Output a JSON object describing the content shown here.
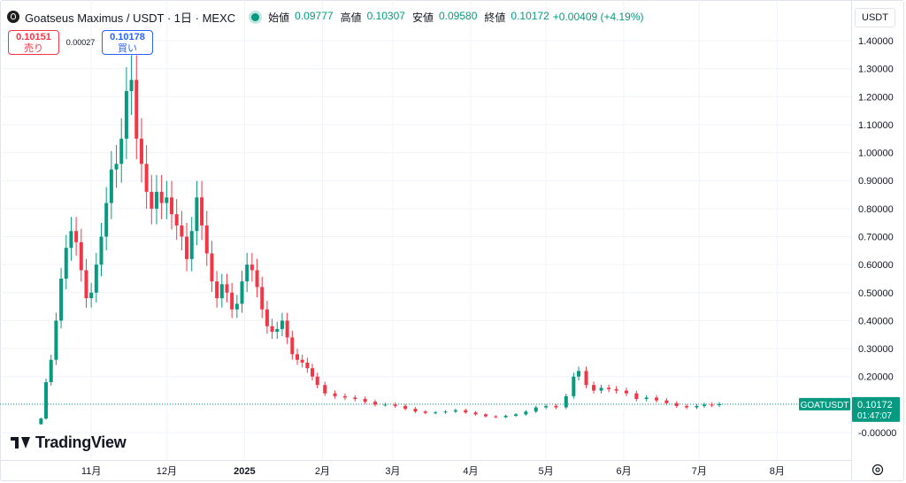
{
  "header": {
    "title": "Goatseus Maximus / USDT · 1日 · MEXC",
    "ohlc": [
      {
        "label": "始値",
        "value": "0.09777"
      },
      {
        "label": "高値",
        "value": "0.10307"
      },
      {
        "label": "安値",
        "value": "0.09580"
      },
      {
        "label": "終値",
        "value": "0.10172"
      }
    ],
    "change": "+0.00409 (+4.19%)"
  },
  "trade": {
    "sell_price": "0.10151",
    "sell_label": "売り",
    "spread": "0.00027",
    "buy_price": "0.10178",
    "buy_label": "買い"
  },
  "currency_button": "USDT",
  "price_tag": {
    "symbol": "GOATUSDT",
    "price": "0.10172",
    "countdown": "01:47:07"
  },
  "brand": "TradingView",
  "icons": {
    "logo": "goat-coin-icon",
    "live": "live-dot-icon",
    "settings": "gear-icon"
  },
  "colors": {
    "up": "#089981",
    "down": "#f23645",
    "grid": "#f0f3fa",
    "text": "#131722"
  },
  "chart_data": {
    "type": "candlestick",
    "y_ticks": [
      "1.40000",
      "1.30000",
      "1.20000",
      "1.10000",
      "1.00000",
      "0.90000",
      "0.80000",
      "0.70000",
      "0.60000",
      "0.50000",
      "0.40000",
      "0.30000",
      "0.20000",
      "0.10000",
      "-0.00000"
    ],
    "ylim": [
      -0.03,
      1.46
    ],
    "x_ticks": [
      "11月",
      "12月",
      "2025",
      "2月",
      "3月",
      "4月",
      "5月",
      "6月",
      "7月",
      "8月"
    ],
    "xlim": [
      "2024-10-08",
      "2025-08-28"
    ],
    "last_price": 0.10172,
    "series": [
      {
        "date": "2024-10-12",
        "close": 0.05
      },
      {
        "date": "2024-10-14",
        "close": 0.18
      },
      {
        "date": "2024-10-16",
        "close": 0.26
      },
      {
        "date": "2024-10-18",
        "close": 0.4
      },
      {
        "date": "2024-10-20",
        "close": 0.55
      },
      {
        "date": "2024-10-22",
        "close": 0.66
      },
      {
        "date": "2024-10-24",
        "close": 0.72
      },
      {
        "date": "2024-10-26",
        "close": 0.68
      },
      {
        "date": "2024-10-28",
        "close": 0.58
      },
      {
        "date": "2024-10-30",
        "close": 0.48
      },
      {
        "date": "2024-11-01",
        "close": 0.5
      },
      {
        "date": "2024-11-03",
        "close": 0.6
      },
      {
        "date": "2024-11-05",
        "close": 0.7
      },
      {
        "date": "2024-11-07",
        "close": 0.82
      },
      {
        "date": "2024-11-09",
        "close": 0.94
      },
      {
        "date": "2024-11-11",
        "close": 0.96
      },
      {
        "date": "2024-11-13",
        "close": 1.05
      },
      {
        "date": "2024-11-15",
        "close": 1.22
      },
      {
        "date": "2024-11-17",
        "close": 1.26
      },
      {
        "date": "2024-11-19",
        "close": 1.05
      },
      {
        "date": "2024-11-21",
        "close": 0.96
      },
      {
        "date": "2024-11-23",
        "close": 0.86
      },
      {
        "date": "2024-11-25",
        "close": 0.8
      },
      {
        "date": "2024-11-27",
        "close": 0.86
      },
      {
        "date": "2024-11-29",
        "close": 0.82
      },
      {
        "date": "2024-12-01",
        "close": 0.84
      },
      {
        "date": "2024-12-03",
        "close": 0.78
      },
      {
        "date": "2024-12-05",
        "close": 0.74
      },
      {
        "date": "2024-12-07",
        "close": 0.7
      },
      {
        "date": "2024-12-09",
        "close": 0.62
      },
      {
        "date": "2024-12-11",
        "close": 0.72
      },
      {
        "date": "2024-12-13",
        "close": 0.84
      },
      {
        "date": "2024-12-15",
        "close": 0.74
      },
      {
        "date": "2024-12-17",
        "close": 0.64
      },
      {
        "date": "2024-12-19",
        "close": 0.54
      },
      {
        "date": "2024-12-21",
        "close": 0.48
      },
      {
        "date": "2024-12-23",
        "close": 0.53
      },
      {
        "date": "2024-12-25",
        "close": 0.5
      },
      {
        "date": "2024-12-27",
        "close": 0.44
      },
      {
        "date": "2024-12-29",
        "close": 0.46
      },
      {
        "date": "2024-12-31",
        "close": 0.54
      },
      {
        "date": "2025-01-02",
        "close": 0.6
      },
      {
        "date": "2025-01-04",
        "close": 0.58
      },
      {
        "date": "2025-01-06",
        "close": 0.52
      },
      {
        "date": "2025-01-08",
        "close": 0.44
      },
      {
        "date": "2025-01-10",
        "close": 0.38
      },
      {
        "date": "2025-01-12",
        "close": 0.36
      },
      {
        "date": "2025-01-14",
        "close": 0.37
      },
      {
        "date": "2025-01-16",
        "close": 0.4
      },
      {
        "date": "2025-01-18",
        "close": 0.34
      },
      {
        "date": "2025-01-20",
        "close": 0.28
      },
      {
        "date": "2025-01-22",
        "close": 0.26
      },
      {
        "date": "2025-01-24",
        "close": 0.25
      },
      {
        "date": "2025-01-26",
        "close": 0.23
      },
      {
        "date": "2025-01-28",
        "close": 0.2
      },
      {
        "date": "2025-01-30",
        "close": 0.17
      },
      {
        "date": "2025-02-02",
        "close": 0.14
      },
      {
        "date": "2025-02-06",
        "close": 0.13
      },
      {
        "date": "2025-02-10",
        "close": 0.125
      },
      {
        "date": "2025-02-14",
        "close": 0.12
      },
      {
        "date": "2025-02-18",
        "close": 0.11
      },
      {
        "date": "2025-02-22",
        "close": 0.1
      },
      {
        "date": "2025-02-26",
        "close": 0.1
      },
      {
        "date": "2025-03-02",
        "close": 0.095
      },
      {
        "date": "2025-03-06",
        "close": 0.085
      },
      {
        "date": "2025-03-10",
        "close": 0.075
      },
      {
        "date": "2025-03-14",
        "close": 0.07
      },
      {
        "date": "2025-03-18",
        "close": 0.072
      },
      {
        "date": "2025-03-22",
        "close": 0.075
      },
      {
        "date": "2025-03-26",
        "close": 0.08
      },
      {
        "date": "2025-03-30",
        "close": 0.072
      },
      {
        "date": "2025-04-03",
        "close": 0.065
      },
      {
        "date": "2025-04-07",
        "close": 0.058
      },
      {
        "date": "2025-04-11",
        "close": 0.055
      },
      {
        "date": "2025-04-15",
        "close": 0.06
      },
      {
        "date": "2025-04-19",
        "close": 0.065
      },
      {
        "date": "2025-04-23",
        "close": 0.075
      },
      {
        "date": "2025-04-27",
        "close": 0.09
      },
      {
        "date": "2025-05-01",
        "close": 0.095
      },
      {
        "date": "2025-05-05",
        "close": 0.09
      },
      {
        "date": "2025-05-09",
        "close": 0.13
      },
      {
        "date": "2025-05-12",
        "close": 0.2
      },
      {
        "date": "2025-05-14",
        "close": 0.22
      },
      {
        "date": "2025-05-17",
        "close": 0.17
      },
      {
        "date": "2025-05-20",
        "close": 0.15
      },
      {
        "date": "2025-05-23",
        "close": 0.16
      },
      {
        "date": "2025-05-26",
        "close": 0.155
      },
      {
        "date": "2025-05-29",
        "close": 0.15
      },
      {
        "date": "2025-06-02",
        "close": 0.14
      },
      {
        "date": "2025-06-06",
        "close": 0.12
      },
      {
        "date": "2025-06-10",
        "close": 0.125
      },
      {
        "date": "2025-06-14",
        "close": 0.115
      },
      {
        "date": "2025-06-18",
        "close": 0.105
      },
      {
        "date": "2025-06-22",
        "close": 0.095
      },
      {
        "date": "2025-06-26",
        "close": 0.09
      },
      {
        "date": "2025-06-30",
        "close": 0.095
      },
      {
        "date": "2025-07-03",
        "close": 0.1
      },
      {
        "date": "2025-07-06",
        "close": 0.098
      },
      {
        "date": "2025-07-09",
        "close": 0.1017
      }
    ]
  }
}
